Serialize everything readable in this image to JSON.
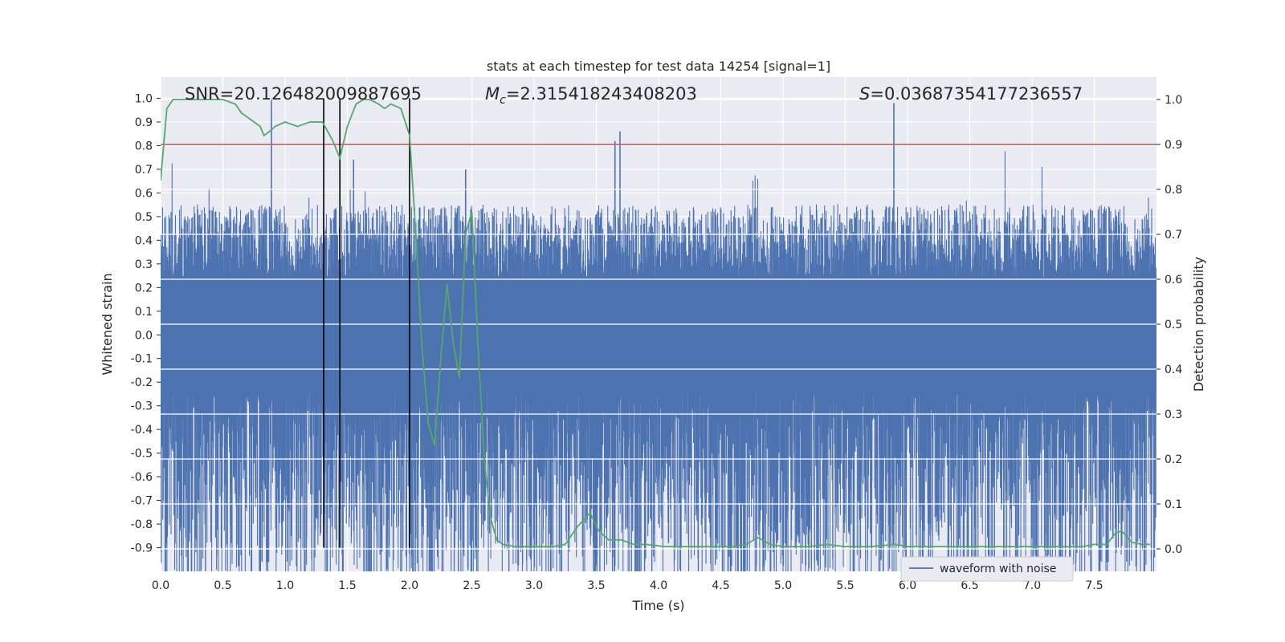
{
  "chart_data": {
    "type": "line",
    "title": "stats at each timestep for test data 14254 [signal=1]",
    "xlabel": "Time (s)",
    "ylabel": "Whitened strain",
    "y2label": "Detection probability",
    "xlim": [
      0.0,
      8.0
    ],
    "ylim": [
      -1.0,
      1.09
    ],
    "y2lim": [
      -0.05,
      1.05
    ],
    "xticks": [
      "0.0",
      "0.5",
      "1.0",
      "1.5",
      "2.0",
      "2.5",
      "3.0",
      "3.5",
      "4.0",
      "4.5",
      "5.0",
      "5.5",
      "6.0",
      "6.5",
      "7.0",
      "7.5"
    ],
    "yticks": [
      "-0.9",
      "-0.8",
      "-0.7",
      "-0.6",
      "-0.5",
      "-0.4",
      "-0.3",
      "-0.2",
      "-0.1",
      "0.0",
      "0.1",
      "0.2",
      "0.3",
      "0.4",
      "0.5",
      "0.6",
      "0.7",
      "0.8",
      "0.9",
      "1.0"
    ],
    "y2ticks": [
      "0.0",
      "0.1",
      "0.2",
      "0.3",
      "0.4",
      "0.5",
      "0.6",
      "0.7",
      "0.8",
      "0.9",
      "1.0"
    ],
    "annotations": {
      "snr": "SNR=20.126482009887695",
      "mc_symbol": "M",
      "mc_sub": "c",
      "mc_value": "=2.315418243408203",
      "s_symbol": "S",
      "s_value": "=0.036873541772365​57"
    },
    "threshold": {
      "value": 0.9,
      "axis": "right",
      "color": "#c44e52"
    },
    "vertical_lines": [
      1.31,
      1.44,
      2.0
    ],
    "waveform": {
      "name": "waveform with noise",
      "color": "#4c72b0",
      "samples": 4096,
      "band_core": [
        -0.24,
        0.24
      ],
      "typical_extent": [
        -0.5,
        0.5
      ],
      "spikes": [
        {
          "t": 0.57,
          "v": -0.88
        },
        {
          "t": 0.89,
          "v": 1.0
        },
        {
          "t": 1.31,
          "v": -0.58
        },
        {
          "t": 1.55,
          "v": 0.74
        },
        {
          "t": 2.16,
          "v": -0.82
        },
        {
          "t": 2.45,
          "v": 0.7
        },
        {
          "t": 3.41,
          "v": -0.7
        },
        {
          "t": 3.69,
          "v": 0.86
        },
        {
          "t": 4.08,
          "v": -0.88
        },
        {
          "t": 5.13,
          "v": -0.88
        },
        {
          "t": 5.89,
          "v": 0.98
        },
        {
          "t": 5.89,
          "v": -0.8
        },
        {
          "t": 7.65,
          "v": -0.86
        },
        {
          "t": 7.4,
          "v": -0.7
        },
        {
          "t": 3.65,
          "v": 0.82
        }
      ]
    },
    "detection_probability": {
      "name": "detection probability",
      "color": "#55a868",
      "x": [
        0.0,
        0.05,
        0.1,
        0.2,
        0.3,
        0.4,
        0.5,
        0.6,
        0.65,
        0.7,
        0.8,
        0.83,
        0.88,
        0.92,
        1.0,
        1.1,
        1.2,
        1.3,
        1.38,
        1.44,
        1.5,
        1.57,
        1.63,
        1.68,
        1.75,
        1.8,
        1.85,
        1.93,
        2.0,
        2.05,
        2.1,
        2.15,
        2.2,
        2.25,
        2.3,
        2.35,
        2.4,
        2.45,
        2.5,
        2.55,
        2.6,
        2.65,
        2.7,
        2.75,
        2.85,
        3.0,
        3.15,
        3.25,
        3.35,
        3.45,
        3.52,
        3.6,
        3.7,
        3.8,
        3.9,
        4.05,
        4.2,
        4.4,
        4.6,
        4.7,
        4.8,
        4.9,
        5.0,
        5.1,
        5.2,
        5.35,
        5.5,
        5.7,
        5.9,
        6.0,
        6.2,
        6.5,
        6.8,
        7.0,
        7.2,
        7.4,
        7.5,
        7.6,
        7.67,
        7.72,
        7.8,
        7.88,
        7.95
      ],
      "y": [
        0.82,
        0.98,
        1.0,
        1.0,
        1.0,
        1.0,
        1.0,
        0.99,
        0.97,
        0.96,
        0.94,
        0.92,
        0.93,
        0.94,
        0.95,
        0.94,
        0.95,
        0.95,
        0.91,
        0.87,
        0.94,
        0.99,
        1.0,
        1.0,
        0.99,
        0.98,
        0.99,
        0.98,
        0.92,
        0.7,
        0.45,
        0.28,
        0.23,
        0.42,
        0.59,
        0.46,
        0.38,
        0.7,
        0.75,
        0.45,
        0.2,
        0.07,
        0.02,
        0.01,
        0.005,
        0.005,
        0.005,
        0.01,
        0.05,
        0.08,
        0.04,
        0.02,
        0.02,
        0.01,
        0.01,
        0.005,
        0.005,
        0.005,
        0.005,
        0.01,
        0.025,
        0.01,
        0.005,
        0.005,
        0.005,
        0.01,
        0.005,
        0.005,
        0.01,
        0.005,
        0.005,
        0.005,
        0.005,
        0.005,
        0.005,
        0.005,
        0.01,
        0.01,
        0.035,
        0.04,
        0.015,
        0.01,
        0.01
      ]
    },
    "legend": {
      "entries": [
        "waveform with noise"
      ],
      "placement": "bottom-right"
    },
    "grid": true
  }
}
